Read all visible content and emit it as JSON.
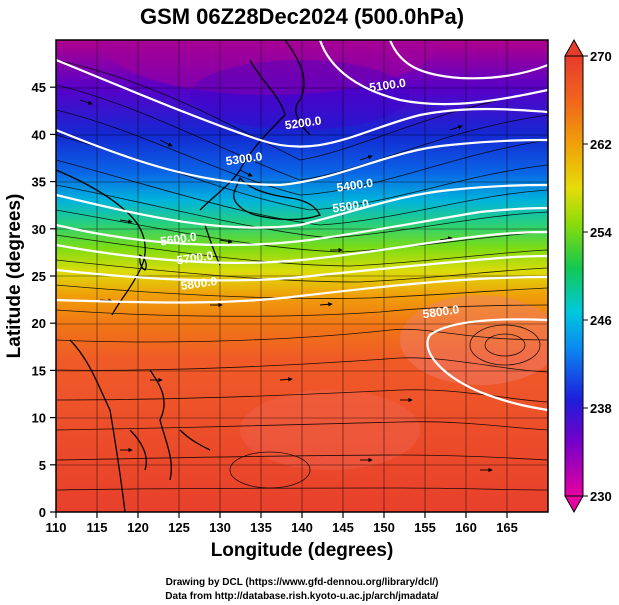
{
  "title": "GSM 06Z28Dec2024 (500.0hPa)",
  "xlabel": "Longitude (degrees)",
  "ylabel": "Latitude  (degrees)",
  "credits": [
    "Drawing by DCL (https://www.gfd-dennou.org/library/dcl/)",
    "Data from http://database.rish.kyoto-u.ac.jp/arch/jmadata/"
  ],
  "map_data": {
    "type": "heatmap",
    "x_ticks": [
      "110",
      "115",
      "120",
      "125",
      "130",
      "135",
      "140",
      "145",
      "150",
      "155",
      "160",
      "165"
    ],
    "y_ticks": [
      "0",
      "5",
      "10",
      "15",
      "20",
      "25",
      "30",
      "35",
      "40",
      "45"
    ],
    "xlim": [
      110,
      170
    ],
    "ylim": [
      0,
      50
    ],
    "colorbar": {
      "min": 230,
      "max": 270,
      "ticks": [
        "230",
        "238",
        "246",
        "254",
        "262",
        "270"
      ]
    },
    "contour_labels": [
      {
        "text": "5100.0",
        "lon": 150.5,
        "lat": 44.8
      },
      {
        "text": "5200.0",
        "lon": 140.2,
        "lat": 40.8
      },
      {
        "text": "5300.0",
        "lon": 133.0,
        "lat": 37.0
      },
      {
        "text": "5400.0",
        "lon": 146.5,
        "lat": 34.2
      },
      {
        "text": "5500.0",
        "lon": 146.0,
        "lat": 32.0
      },
      {
        "text": "5600.0",
        "lon": 125.0,
        "lat": 28.5
      },
      {
        "text": "5700.0",
        "lon": 127.0,
        "lat": 26.5
      },
      {
        "text": "5800.0",
        "lon": 127.5,
        "lat": 23.8
      },
      {
        "text": "5800.0",
        "lon": 157.0,
        "lat": 20.8
      }
    ]
  }
}
